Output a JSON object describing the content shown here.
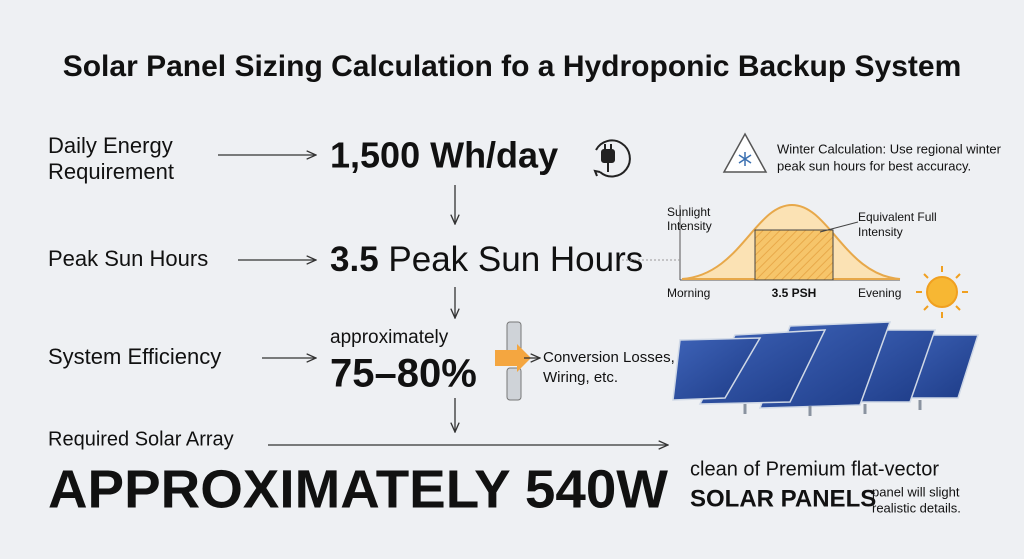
{
  "title": "Solar Panel Sizing Calculation fo a Hydroponic Backup System",
  "steps": [
    {
      "label": [
        "Daily Energy",
        "Requirement"
      ],
      "value": "1,500 Wh/day"
    },
    {
      "label": [
        "Peak Sun Hours"
      ],
      "value_bold": "3.5",
      "value_rest": "Peak Sun Hours"
    },
    {
      "label": [
        "System Efficiency"
      ],
      "qualifier": "approximately",
      "value": "75–80%",
      "note": [
        "Conversion Losses,",
        "Wiring, etc."
      ]
    }
  ],
  "result": {
    "label": "Required Solar Array",
    "value": "APPROXIMATELY 540W"
  },
  "winter_note": [
    "Winter Calculation: Use regional winter",
    "peak sun hours for best accuracy."
  ],
  "sun_chart": {
    "y_label": [
      "Sunlight",
      "Intensity"
    ],
    "box_label": [
      "Equivalent Full",
      "Intensity"
    ],
    "start": "Morning",
    "middle": "3.5 PSH",
    "end": "Evening"
  },
  "panel_caption": {
    "line1": "clean of Premium flat-vector",
    "bold": "SOLAR PANELS",
    "small": [
      "panel will slight",
      "realistic details."
    ]
  }
}
